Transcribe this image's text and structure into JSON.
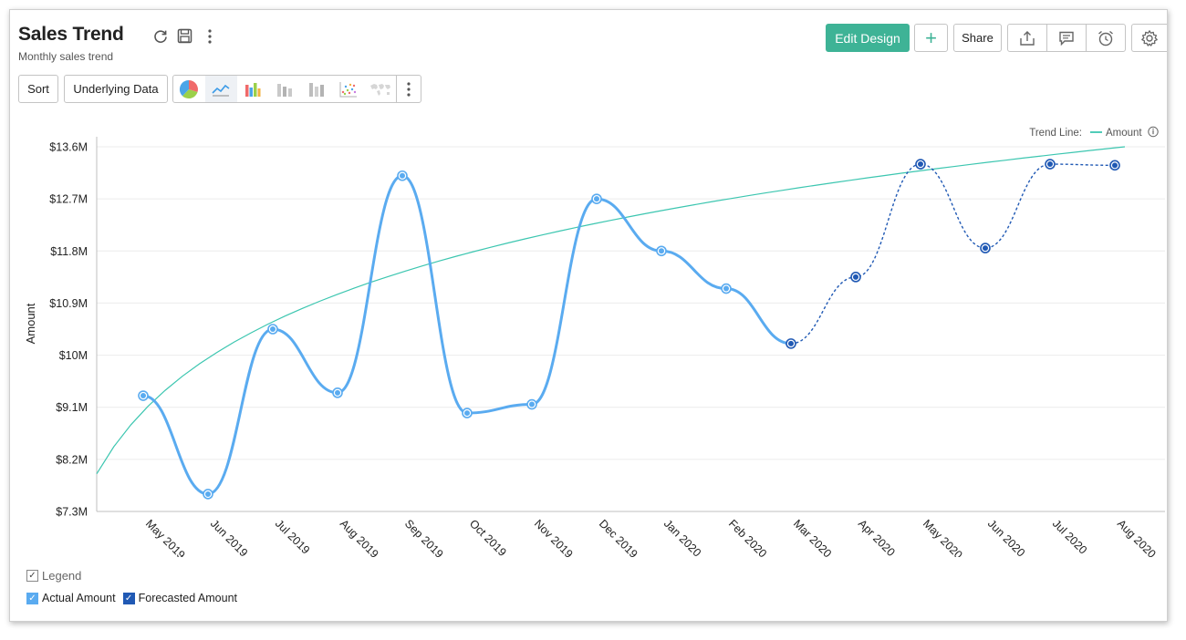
{
  "header": {
    "title": "Sales Trend",
    "subtitle": "Monthly sales trend",
    "icons": [
      "refresh-icon",
      "save-icon",
      "more-vertical-icon"
    ]
  },
  "toolbar": {
    "edit_design_label": "Edit Design",
    "add_label": "+",
    "share_label": "Share",
    "right_icons": [
      "export-icon",
      "comment-icon",
      "alarm-clock-icon",
      "settings-gear-icon"
    ]
  },
  "controls": {
    "sort_label": "Sort",
    "underlying_data_label": "Underlying Data",
    "chart_types": [
      "pie-chart-icon",
      "line-chart-icon",
      "bar-chart-icon",
      "stacked-bar-chart-icon",
      "stacked-column-chart-icon",
      "scatter-chart-icon",
      "map-chart-icon"
    ],
    "active_chart_type": "line-chart-icon"
  },
  "trend": {
    "label": "Trend Line:",
    "series_label": "Amount"
  },
  "legend": {
    "title": "Legend",
    "items": [
      {
        "label": "Actual Amount",
        "color": "#5aabf0"
      },
      {
        "label": "Forecasted Amount",
        "color": "#2059b4"
      }
    ]
  },
  "colors": {
    "actual": "#5aabf0",
    "forecast": "#2059b4",
    "trend": "#3cc6b0",
    "primary_button": "#3eb396"
  },
  "chart_data": {
    "type": "line",
    "title": "",
    "xlabel": "",
    "ylabel": "Amount",
    "ylim": [
      7.3,
      13.6
    ],
    "y_ticks": [
      7.3,
      8.2,
      9.1,
      10.0,
      10.9,
      11.8,
      12.7,
      13.6
    ],
    "y_tick_labels": [
      "$7.3M",
      "$8.2M",
      "$9.1M",
      "$10M",
      "$10.9M",
      "$11.8M",
      "$12.7M",
      "$13.6M"
    ],
    "categories": [
      "May 2019",
      "Jun 2019",
      "Jul 2019",
      "Aug 2019",
      "Sep 2019",
      "Oct 2019",
      "Nov 2019",
      "Dec 2019",
      "Jan 2020",
      "Feb 2020",
      "Mar 2020",
      "Apr 2020",
      "May 2020",
      "Jun 2020",
      "Jul 2020",
      "Aug 2020"
    ],
    "series": [
      {
        "name": "Actual Amount",
        "values": [
          9.3,
          7.6,
          10.45,
          9.35,
          13.1,
          9.0,
          9.15,
          12.7,
          11.8,
          11.15,
          10.2,
          null,
          null,
          null,
          null,
          null
        ]
      },
      {
        "name": "Forecasted Amount",
        "values": [
          null,
          null,
          null,
          null,
          null,
          null,
          null,
          null,
          null,
          null,
          10.2,
          11.35,
          13.3,
          11.85,
          13.3,
          13.28
        ]
      }
    ],
    "trend_line": {
      "name": "Amount",
      "start": 7.95,
      "end": 13.6
    },
    "grid": true,
    "legend": "bottom-left"
  }
}
